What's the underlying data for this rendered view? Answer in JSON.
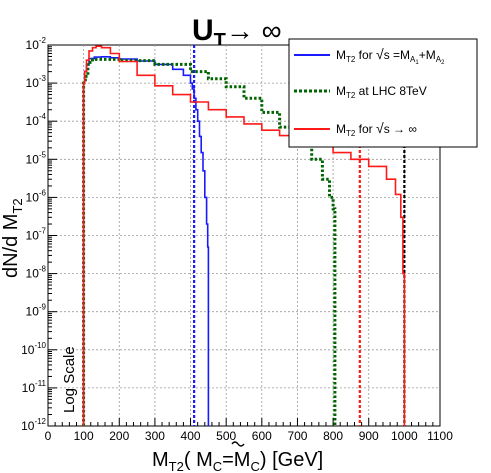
{
  "chart_data": {
    "type": "line",
    "title": {
      "main": "U",
      "sub": "T",
      "suffix": "→ ∞"
    },
    "xlabel": {
      "pre": "M",
      "sub1": "T2",
      "mid": "( ",
      "tilde": "M",
      "sub2": "C",
      "eq": "=M",
      "sub3": "C",
      "post": ") [GeV]"
    },
    "ylabel": {
      "pre": "dN/d M",
      "sub": "T2"
    },
    "annotation": "Log Scale",
    "xlim": [
      0,
      1100
    ],
    "ylim_exp": [
      -12,
      -2
    ],
    "x_ticks": [
      "0",
      "100",
      "200",
      "300",
      "400",
      "500",
      "600",
      "700",
      "800",
      "900",
      "1000",
      "1100"
    ],
    "y_ticks": [
      {
        "base": "10",
        "exp": "-12"
      },
      {
        "base": "10",
        "exp": "-11"
      },
      {
        "base": "10",
        "exp": "-10"
      },
      {
        "base": "10",
        "exp": "-9"
      },
      {
        "base": "10",
        "exp": "-8"
      },
      {
        "base": "10",
        "exp": "-7"
      },
      {
        "base": "10",
        "exp": "-6"
      },
      {
        "base": "10",
        "exp": "-5"
      },
      {
        "base": "10",
        "exp": "-4"
      },
      {
        "base": "10",
        "exp": "-3"
      },
      {
        "base": "10",
        "exp": "-2"
      }
    ],
    "grid": true,
    "legend_position": "top-right",
    "legend": [
      {
        "pre": "M",
        "sub": "T2",
        "text": " for ",
        "tail": "s =M",
        "s1": "A",
        "ss1": "1",
        "plus": "+M",
        "s2": "A",
        "ss2": "2"
      },
      {
        "pre": "M",
        "sub": "T2",
        "text": " at LHC 8TeV"
      },
      {
        "pre": "M",
        "sub": "T2",
        "text": " for ",
        "tail": "s → ∞"
      }
    ],
    "series": [
      {
        "color": "#1a1aff",
        "style": "solid",
        "points": [
          [
            100,
            1e-12
          ],
          [
            100,
            0.001
          ],
          [
            103,
            0.002
          ],
          [
            108,
            0.003
          ],
          [
            115,
            0.0044
          ],
          [
            130,
            0.0048
          ],
          [
            150,
            0.0049
          ],
          [
            175,
            0.0046
          ],
          [
            200,
            0.0043
          ],
          [
            250,
            0.0038
          ],
          [
            300,
            0.0031
          ],
          [
            350,
            0.0023
          ],
          [
            380,
            0.0016
          ],
          [
            400,
            0.001
          ],
          [
            405,
            0.0007
          ],
          [
            410,
            0.0004
          ],
          [
            415,
            0.0002
          ],
          [
            420,
            0.0001
          ],
          [
            425,
            4e-05
          ],
          [
            430,
            1.5e-05
          ],
          [
            435,
            5e-06
          ],
          [
            440,
            1e-06
          ],
          [
            445,
            2e-07
          ],
          [
            448,
            5e-08
          ],
          [
            450,
            1e-12
          ]
        ]
      },
      {
        "color": "#006400",
        "style": "dotted",
        "points": [
          [
            100,
            1e-12
          ],
          [
            100,
            0.001
          ],
          [
            105,
            0.0015
          ],
          [
            112,
            0.0035
          ],
          [
            125,
            0.0042
          ],
          [
            150,
            0.0042
          ],
          [
            200,
            0.0039
          ],
          [
            300,
            0.0031
          ],
          [
            400,
            0.002
          ],
          [
            450,
            0.0013
          ],
          [
            500,
            0.0008
          ],
          [
            550,
            0.0004
          ],
          [
            600,
            0.00017
          ],
          [
            650,
            7e-05
          ],
          [
            700,
            2.7e-05
          ],
          [
            740,
            1e-05
          ],
          [
            770,
            3e-06
          ],
          [
            790,
            1e-06
          ],
          [
            800,
            5e-07
          ],
          [
            805,
            1e-12
          ]
        ]
      },
      {
        "color": "#ff1a1a",
        "style": "solid",
        "points": [
          [
            100,
            1e-12
          ],
          [
            100,
            0.001
          ],
          [
            103,
            0.002
          ],
          [
            108,
            0.004
          ],
          [
            115,
            0.007
          ],
          [
            125,
            0.0085
          ],
          [
            135,
            0.0093
          ],
          [
            150,
            0.0085
          ],
          [
            175,
            0.006
          ],
          [
            200,
            0.0037
          ],
          [
            250,
            0.0016
          ],
          [
            300,
            0.00085
          ],
          [
            350,
            0.0005
          ],
          [
            400,
            0.00032
          ],
          [
            450,
            0.0002
          ],
          [
            500,
            0.00013
          ],
          [
            550,
            8.5e-05
          ],
          [
            600,
            5.8e-05
          ],
          [
            650,
            4.2e-05
          ],
          [
            700,
            3e-05
          ],
          [
            750,
            2.2e-05
          ],
          [
            800,
            1.5e-05
          ],
          [
            850,
            1e-05
          ],
          [
            900,
            6.5e-06
          ],
          [
            950,
            3e-06
          ],
          [
            975,
            1.2e-06
          ],
          [
            990,
            3e-07
          ],
          [
            996,
            1e-08
          ],
          [
            1000,
            1e-12
          ]
        ]
      }
    ],
    "vlines": [
      {
        "x": 410,
        "color": "#1a1aff"
      },
      {
        "x": 875,
        "color": "#ff1a1a"
      },
      {
        "x": 1000,
        "color": "#000000"
      }
    ]
  }
}
